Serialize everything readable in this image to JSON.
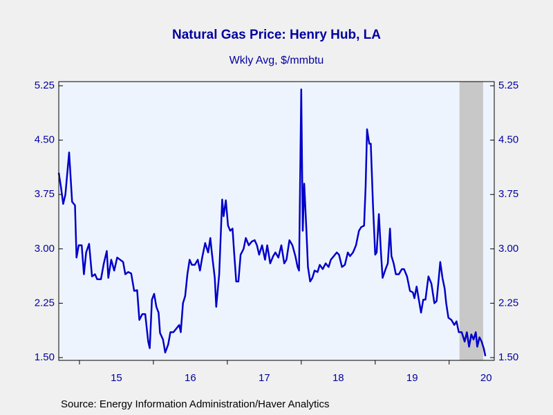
{
  "chart_data": {
    "type": "line",
    "title": "Natural Gas Price: Henry Hub, LA",
    "subtitle": "Wkly Avg, $/mmbtu",
    "source": "Source:  Energy Information Administration/Haver Analytics",
    "x": [
      14.72,
      14.75,
      14.78,
      14.81,
      14.86,
      14.9,
      14.94,
      14.96,
      14.99,
      15.03,
      15.06,
      15.09,
      15.13,
      15.17,
      15.21,
      15.24,
      15.29,
      15.33,
      15.37,
      15.39,
      15.43,
      15.47,
      15.51,
      15.55,
      15.59,
      15.62,
      15.66,
      15.7,
      15.74,
      15.78,
      15.81,
      15.85,
      15.89,
      15.93,
      15.95,
      15.98,
      16.01,
      16.04,
      16.07,
      16.09,
      16.13,
      16.16,
      16.2,
      16.23,
      16.27,
      16.31,
      16.35,
      16.37,
      16.4,
      16.43,
      16.46,
      16.49,
      16.52,
      16.56,
      16.6,
      16.63,
      16.66,
      16.7,
      16.74,
      16.77,
      16.79,
      16.83,
      16.85,
      16.89,
      16.93,
      16.95,
      16.98,
      17.01,
      17.04,
      17.07,
      17.09,
      17.12,
      17.15,
      17.18,
      17.22,
      17.25,
      17.29,
      17.33,
      17.37,
      17.4,
      17.43,
      17.47,
      17.51,
      17.54,
      17.58,
      17.62,
      17.65,
      17.69,
      17.73,
      17.77,
      17.8,
      17.84,
      17.88,
      17.92,
      17.95,
      17.97,
      18.0,
      18.02,
      18.04,
      18.07,
      18.09,
      18.12,
      18.15,
      18.18,
      18.22,
      18.25,
      18.29,
      18.33,
      18.37,
      18.4,
      18.44,
      18.48,
      18.51,
      18.55,
      18.59,
      18.63,
      18.66,
      18.7,
      18.74,
      18.78,
      18.81,
      18.85,
      18.87,
      18.89,
      18.92,
      18.94,
      18.97,
      19.0,
      19.02,
      19.05,
      19.08,
      19.1,
      19.14,
      19.17,
      19.2,
      19.22,
      19.25,
      19.28,
      19.32,
      19.36,
      19.39,
      19.43,
      19.47,
      19.51,
      19.53,
      19.56,
      19.59,
      19.62,
      19.65,
      19.68,
      19.72,
      19.76,
      19.8,
      19.83,
      19.86,
      19.88,
      19.91,
      19.94,
      19.96,
      19.99,
      20.03,
      20.07,
      20.1,
      20.13,
      20.17,
      20.21,
      20.24,
      20.27,
      20.3,
      20.33,
      20.36,
      20.38,
      20.41,
      20.44,
      20.47,
      20.49
    ],
    "series": [
      {
        "name": "Henry Hub",
        "color": "#0000c8",
        "values": [
          4.05,
          3.85,
          3.62,
          3.75,
          4.33,
          3.65,
          3.6,
          2.88,
          3.05,
          3.05,
          2.65,
          2.95,
          3.07,
          2.62,
          2.65,
          2.58,
          2.58,
          2.8,
          2.97,
          2.6,
          2.85,
          2.7,
          2.88,
          2.85,
          2.82,
          2.65,
          2.68,
          2.66,
          2.42,
          2.43,
          2.02,
          2.1,
          2.1,
          1.72,
          1.63,
          2.3,
          2.38,
          2.2,
          2.12,
          1.84,
          1.75,
          1.57,
          1.68,
          1.85,
          1.85,
          1.9,
          1.95,
          1.85,
          2.25,
          2.35,
          2.65,
          2.85,
          2.78,
          2.78,
          2.85,
          2.7,
          2.88,
          3.08,
          2.95,
          3.15,
          2.95,
          2.6,
          2.2,
          2.65,
          3.68,
          3.45,
          3.67,
          3.32,
          3.25,
          3.28,
          2.98,
          2.55,
          2.55,
          2.92,
          3.0,
          3.15,
          3.05,
          3.1,
          3.12,
          3.05,
          2.92,
          3.05,
          2.85,
          3.05,
          2.8,
          2.9,
          2.95,
          2.88,
          3.05,
          2.8,
          2.85,
          3.12,
          3.05,
          2.9,
          2.75,
          2.7,
          5.2,
          3.25,
          3.9,
          3.25,
          2.75,
          2.55,
          2.6,
          2.7,
          2.68,
          2.78,
          2.72,
          2.8,
          2.75,
          2.85,
          2.9,
          2.95,
          2.92,
          2.75,
          2.78,
          2.95,
          2.9,
          2.95,
          3.05,
          3.25,
          3.3,
          3.32,
          3.85,
          4.65,
          4.45,
          4.45,
          3.6,
          2.92,
          2.95,
          3.48,
          2.92,
          2.6,
          2.72,
          2.8,
          3.28,
          2.9,
          2.8,
          2.65,
          2.65,
          2.72,
          2.72,
          2.62,
          2.42,
          2.4,
          2.32,
          2.48,
          2.3,
          2.12,
          2.3,
          2.3,
          2.62,
          2.52,
          2.25,
          2.28,
          2.6,
          2.82,
          2.6,
          2.45,
          2.25,
          2.05,
          2.02,
          1.95,
          2.0,
          1.85,
          1.85,
          1.72,
          1.85,
          1.65,
          1.82,
          1.75,
          1.85,
          1.65,
          1.78,
          1.72,
          1.62,
          1.52
        ]
      }
    ],
    "xlim": [
      14.72,
      20.61
    ],
    "xticks": [
      15,
      16,
      17,
      18,
      19,
      20
    ],
    "ylim": [
      1.5,
      5.25
    ],
    "yticks": [
      {
        "value": 1.5,
        "label": "1.50"
      },
      {
        "value": 2.25,
        "label": "2.25"
      },
      {
        "value": 3.0,
        "label": "3.00"
      },
      {
        "value": 3.75,
        "label": "3.75"
      },
      {
        "value": 4.5,
        "label": "4.50"
      },
      {
        "value": 5.25,
        "label": "5.25"
      }
    ],
    "shading": [
      20.14,
      20.46
    ],
    "shading_color": "#c8c8c8",
    "plot_background": "#eef4fd"
  }
}
